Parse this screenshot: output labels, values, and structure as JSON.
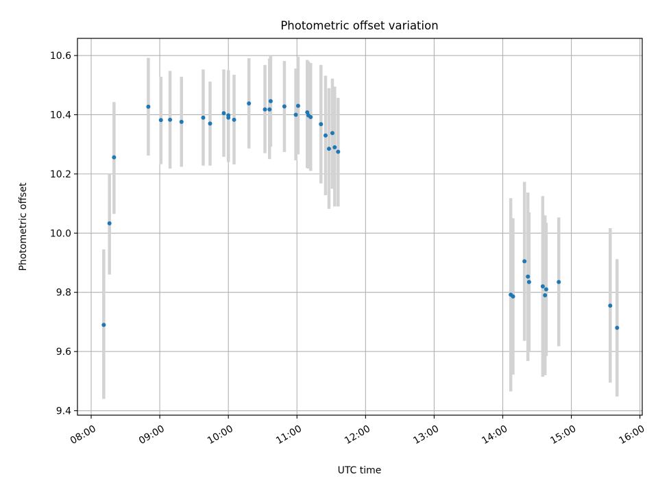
{
  "chart_data": {
    "type": "scatter",
    "title": "Photometric offset variation",
    "xlabel": "UTC time",
    "ylabel": "Photometric offset",
    "xlim": [
      "07:48",
      "16:02"
    ],
    "ylim": [
      9.385,
      10.658
    ],
    "x_ticks": [
      "08:00",
      "09:00",
      "10:00",
      "11:00",
      "12:00",
      "13:00",
      "14:00",
      "15:00",
      "16:00"
    ],
    "y_ticks": [
      "9.4",
      "9.6",
      "9.8",
      "10.0",
      "10.2",
      "10.4",
      "10.6"
    ],
    "grid": true,
    "marker_color": "#1f77b4",
    "errorbar_color": "#d3d3d3",
    "points": [
      {
        "t": "08:11",
        "y": 9.69,
        "lo": 9.44,
        "hi": 9.945
      },
      {
        "t": "08:16",
        "y": 10.033,
        "lo": 9.86,
        "hi": 10.2
      },
      {
        "t": "08:20",
        "y": 10.256,
        "lo": 10.065,
        "hi": 10.443
      },
      {
        "t": "08:50",
        "y": 10.427,
        "lo": 10.262,
        "hi": 10.592
      },
      {
        "t": "09:01",
        "y": 10.382,
        "lo": 10.233,
        "hi": 10.528
      },
      {
        "t": "09:09",
        "y": 10.383,
        "lo": 10.218,
        "hi": 10.548
      },
      {
        "t": "09:19",
        "y": 10.376,
        "lo": 10.224,
        "hi": 10.528
      },
      {
        "t": "09:38",
        "y": 10.39,
        "lo": 10.228,
        "hi": 10.553
      },
      {
        "t": "09:44",
        "y": 10.37,
        "lo": 10.228,
        "hi": 10.512
      },
      {
        "t": "09:56",
        "y": 10.405,
        "lo": 10.258,
        "hi": 10.553
      },
      {
        "t": "10:00",
        "y": 10.39,
        "lo": 10.24,
        "hi": 10.55
      },
      {
        "t": "10:00",
        "y": 10.398,
        "lo": 10.25,
        "hi": 10.54
      },
      {
        "t": "10:05",
        "y": 10.383,
        "lo": 10.232,
        "hi": 10.535
      },
      {
        "t": "10:18",
        "y": 10.438,
        "lo": 10.286,
        "hi": 10.591
      },
      {
        "t": "10:32",
        "y": 10.418,
        "lo": 10.27,
        "hi": 10.568
      },
      {
        "t": "10:36",
        "y": 10.418,
        "lo": 10.25,
        "hi": 10.59
      },
      {
        "t": "10:37",
        "y": 10.446,
        "lo": 10.292,
        "hi": 10.6
      },
      {
        "t": "10:49",
        "y": 10.428,
        "lo": 10.274,
        "hi": 10.582
      },
      {
        "t": "10:59",
        "y": 10.4,
        "lo": 10.246,
        "hi": 10.556
      },
      {
        "t": "11:01",
        "y": 10.43,
        "lo": 10.266,
        "hi": 10.596
      },
      {
        "t": "11:09",
        "y": 10.408,
        "lo": 10.22,
        "hi": 10.585
      },
      {
        "t": "11:10",
        "y": 10.398,
        "lo": 10.218,
        "hi": 10.58
      },
      {
        "t": "11:12",
        "y": 10.392,
        "lo": 10.21,
        "hi": 10.575
      },
      {
        "t": "11:21",
        "y": 10.368,
        "lo": 10.168,
        "hi": 10.568
      },
      {
        "t": "11:25",
        "y": 10.33,
        "lo": 10.128,
        "hi": 10.532
      },
      {
        "t": "11:28",
        "y": 10.285,
        "lo": 10.082,
        "hi": 10.49
      },
      {
        "t": "11:31",
        "y": 10.338,
        "lo": 10.15,
        "hi": 10.522
      },
      {
        "t": "11:33",
        "y": 10.29,
        "lo": 10.09,
        "hi": 10.495
      },
      {
        "t": "11:36",
        "y": 10.275,
        "lo": 10.09,
        "hi": 10.457
      },
      {
        "t": "14:07",
        "y": 9.792,
        "lo": 9.465,
        "hi": 10.118
      },
      {
        "t": "14:09",
        "y": 9.786,
        "lo": 9.522,
        "hi": 10.05
      },
      {
        "t": "14:19",
        "y": 9.905,
        "lo": 9.636,
        "hi": 10.173
      },
      {
        "t": "14:22",
        "y": 9.853,
        "lo": 9.568,
        "hi": 10.137
      },
      {
        "t": "14:23",
        "y": 9.835,
        "lo": 9.6,
        "hi": 10.07
      },
      {
        "t": "14:35",
        "y": 9.82,
        "lo": 9.515,
        "hi": 10.125
      },
      {
        "t": "14:37",
        "y": 9.79,
        "lo": 9.52,
        "hi": 10.06
      },
      {
        "t": "14:38",
        "y": 9.81,
        "lo": 9.585,
        "hi": 10.035
      },
      {
        "t": "14:49",
        "y": 9.835,
        "lo": 9.618,
        "hi": 10.053
      },
      {
        "t": "15:34",
        "y": 9.755,
        "lo": 9.495,
        "hi": 10.017
      },
      {
        "t": "15:40",
        "y": 9.68,
        "lo": 9.448,
        "hi": 9.912
      }
    ]
  }
}
